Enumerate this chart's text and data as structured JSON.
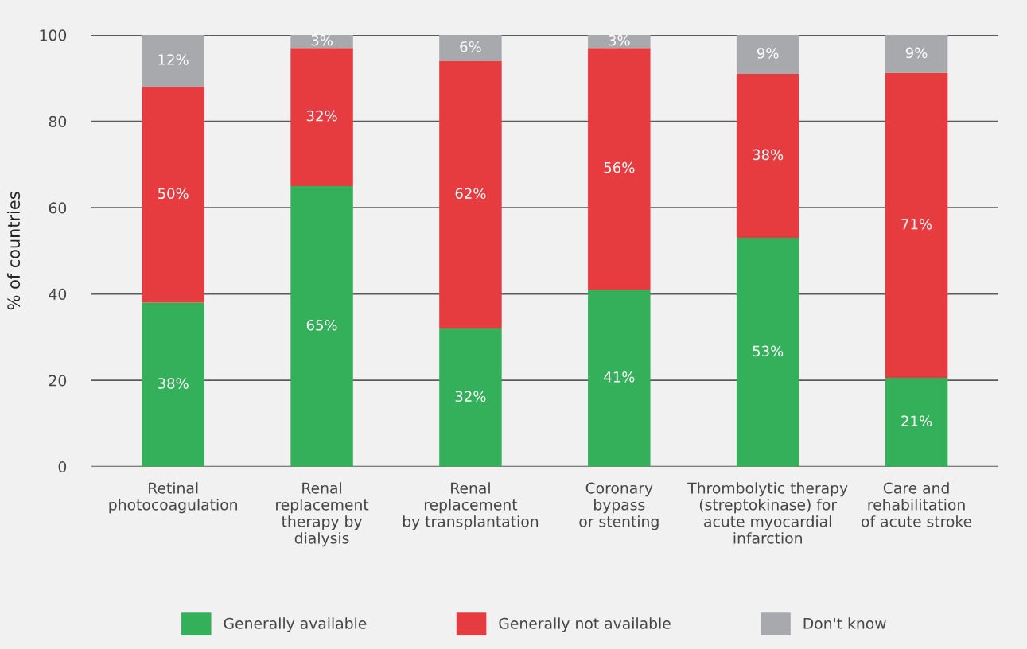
{
  "chart_data": {
    "type": "bar",
    "stacked": true,
    "ylabel": "% of countries",
    "categories": [
      "Retinal\nphotocoagulation",
      "Renal\nreplacement\ntherapy by\ndialysis",
      "Renal\nreplacement\nby transplantation",
      "Coronary\nbypass\nor stenting",
      "Thrombolytic therapy\n(streptokinase) for\nacute myocardial\ninfarction",
      "Care and\nrehabilitation\nof acute stroke"
    ],
    "series": [
      {
        "name": "Generally available",
        "color": "#34b05a",
        "values": [
          38,
          65,
          32,
          41,
          53,
          20.6
        ],
        "value_labels": [
          "38%",
          "65%",
          "32%",
          "41%",
          "53%",
          "21%"
        ]
      },
      {
        "name": "Generally not available",
        "color": "#e63c40",
        "values": [
          50,
          32,
          62,
          56,
          38,
          70.6
        ],
        "value_labels": [
          "50%",
          "32%",
          "62%",
          "56%",
          "38%",
          "71%"
        ]
      },
      {
        "name": "Don't know",
        "color": "#a7a9ac",
        "values": [
          12,
          3,
          6,
          3,
          9,
          8.8
        ],
        "value_labels": [
          "12%",
          "3%",
          "6%",
          "3%",
          "9%",
          "9%"
        ]
      }
    ],
    "ylim": [
      0,
      100
    ],
    "yticks": [
      0,
      20,
      40,
      60,
      80,
      100
    ],
    "grid": "y",
    "legend": "bottom"
  }
}
